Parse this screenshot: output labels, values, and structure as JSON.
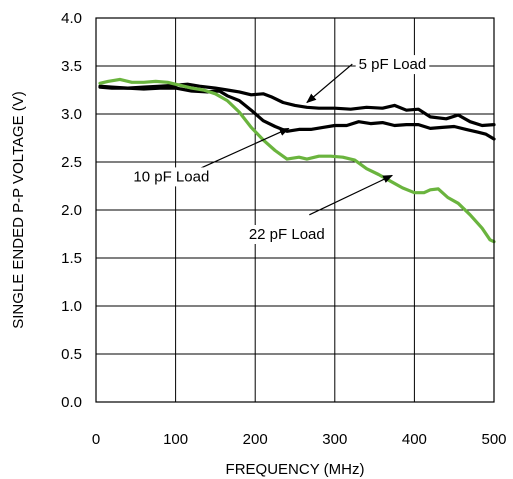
{
  "chart_data": {
    "type": "line",
    "xlabel": "FREQUENCY (MHz)",
    "ylabel": "SINGLE ENDED P-P VOLTAGE (V)",
    "xlim": [
      0,
      500
    ],
    "ylim": [
      0.0,
      4.0
    ],
    "x_ticks": [
      0,
      100,
      200,
      300,
      400,
      500
    ],
    "x_tick_labels": [
      "0",
      "100",
      "200",
      "300",
      "400",
      "500"
    ],
    "y_ticks": [
      0.0,
      0.5,
      1.0,
      1.5,
      2.0,
      2.5,
      3.0,
      3.5,
      4.0
    ],
    "y_tick_labels": [
      "0.0",
      "0.5",
      "1.0",
      "1.5",
      "2.0",
      "2.5",
      "3.0",
      "3.5",
      "4.0"
    ],
    "grid": true,
    "series": [
      {
        "name": "5 pF Load",
        "color": "#000000",
        "points": [
          [
            5,
            3.29
          ],
          [
            20,
            3.28
          ],
          [
            40,
            3.27
          ],
          [
            60,
            3.28
          ],
          [
            80,
            3.29
          ],
          [
            100,
            3.3
          ],
          [
            115,
            3.31
          ],
          [
            130,
            3.29
          ],
          [
            150,
            3.27
          ],
          [
            165,
            3.25
          ],
          [
            180,
            3.23
          ],
          [
            195,
            3.2
          ],
          [
            210,
            3.21
          ],
          [
            220,
            3.18
          ],
          [
            235,
            3.12
          ],
          [
            250,
            3.09
          ],
          [
            265,
            3.07
          ],
          [
            280,
            3.06
          ],
          [
            300,
            3.06
          ],
          [
            320,
            3.05
          ],
          [
            340,
            3.07
          ],
          [
            360,
            3.06
          ],
          [
            375,
            3.09
          ],
          [
            390,
            3.04
          ],
          [
            405,
            3.05
          ],
          [
            420,
            2.97
          ],
          [
            440,
            2.95
          ],
          [
            455,
            2.99
          ],
          [
            470,
            2.92
          ],
          [
            485,
            2.88
          ],
          [
            500,
            2.89
          ]
        ]
      },
      {
        "name": "10 pF Load",
        "color": "#000000",
        "points": [
          [
            5,
            3.28
          ],
          [
            20,
            3.27
          ],
          [
            40,
            3.27
          ],
          [
            60,
            3.26
          ],
          [
            80,
            3.27
          ],
          [
            100,
            3.27
          ],
          [
            120,
            3.24
          ],
          [
            140,
            3.23
          ],
          [
            155,
            3.24
          ],
          [
            165,
            3.19
          ],
          [
            180,
            3.14
          ],
          [
            195,
            3.04
          ],
          [
            210,
            2.93
          ],
          [
            225,
            2.87
          ],
          [
            240,
            2.82
          ],
          [
            255,
            2.84
          ],
          [
            270,
            2.84
          ],
          [
            285,
            2.86
          ],
          [
            300,
            2.88
          ],
          [
            315,
            2.88
          ],
          [
            330,
            2.92
          ],
          [
            345,
            2.9
          ],
          [
            360,
            2.91
          ],
          [
            375,
            2.88
          ],
          [
            390,
            2.89
          ],
          [
            405,
            2.89
          ],
          [
            420,
            2.85
          ],
          [
            435,
            2.86
          ],
          [
            450,
            2.87
          ],
          [
            465,
            2.84
          ],
          [
            480,
            2.81
          ],
          [
            490,
            2.79
          ],
          [
            500,
            2.74
          ]
        ]
      },
      {
        "name": "22 pF Load",
        "color": "#6ab43e",
        "points": [
          [
            5,
            3.32
          ],
          [
            15,
            3.34
          ],
          [
            30,
            3.36
          ],
          [
            45,
            3.33
          ],
          [
            60,
            3.33
          ],
          [
            75,
            3.34
          ],
          [
            90,
            3.33
          ],
          [
            105,
            3.3
          ],
          [
            120,
            3.27
          ],
          [
            135,
            3.25
          ],
          [
            150,
            3.21
          ],
          [
            165,
            3.14
          ],
          [
            180,
            3.02
          ],
          [
            195,
            2.86
          ],
          [
            210,
            2.73
          ],
          [
            225,
            2.62
          ],
          [
            240,
            2.53
          ],
          [
            255,
            2.55
          ],
          [
            265,
            2.53
          ],
          [
            280,
            2.56
          ],
          [
            295,
            2.56
          ],
          [
            310,
            2.55
          ],
          [
            325,
            2.52
          ],
          [
            340,
            2.43
          ],
          [
            355,
            2.37
          ],
          [
            370,
            2.3
          ],
          [
            385,
            2.23
          ],
          [
            400,
            2.18
          ],
          [
            412,
            2.18
          ],
          [
            420,
            2.21
          ],
          [
            430,
            2.22
          ],
          [
            442,
            2.13
          ],
          [
            455,
            2.07
          ],
          [
            470,
            1.95
          ],
          [
            485,
            1.81
          ],
          [
            495,
            1.69
          ],
          [
            500,
            1.67
          ]
        ]
      }
    ],
    "annotations": [
      {
        "text": "5 pF Load",
        "label_at": [
          330,
          3.52
        ],
        "arrow_from": [
          322,
          3.52
        ],
        "arrow_to": [
          265,
          3.12
        ]
      },
      {
        "text": "10 pF Load",
        "label_at": [
          47,
          2.35
        ],
        "arrow_from": [
          130,
          2.43
        ],
        "arrow_to": [
          242,
          2.85
        ]
      },
      {
        "text": "22 pF Load",
        "label_at": [
          192,
          1.75
        ],
        "arrow_from": [
          268,
          1.95
        ],
        "arrow_to": [
          372,
          2.36
        ]
      }
    ]
  }
}
